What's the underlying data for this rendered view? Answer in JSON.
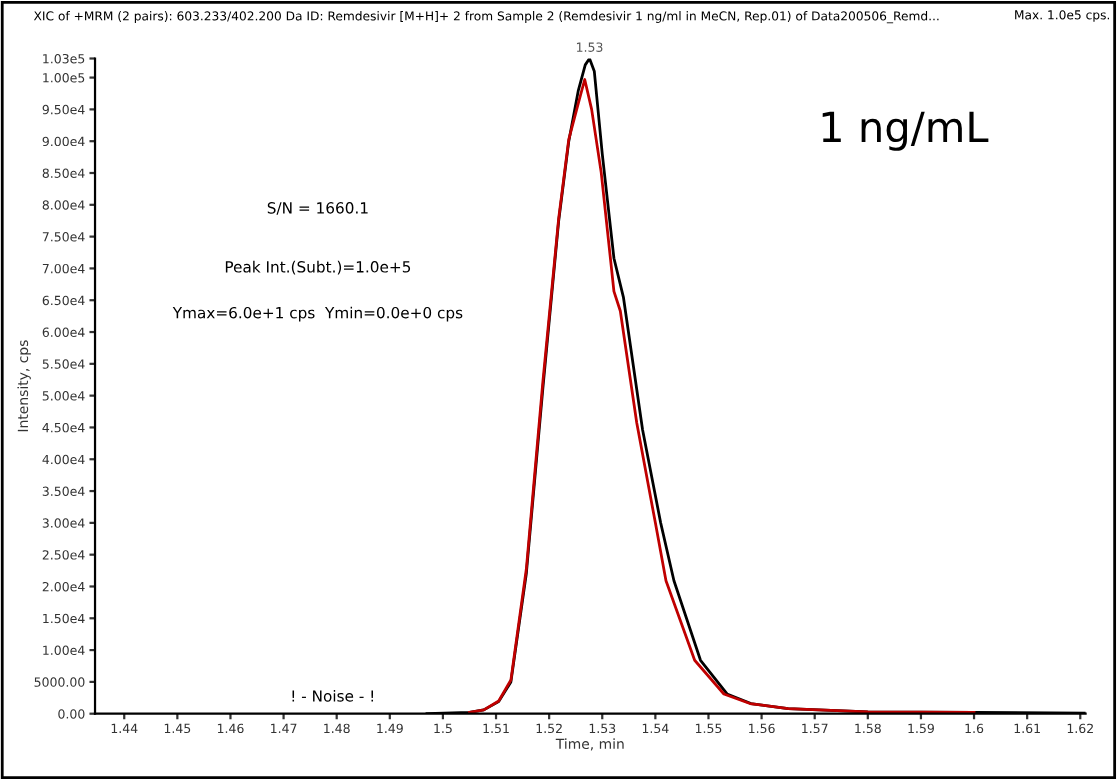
{
  "chart_data": {
    "type": "line",
    "title": "XIC of +MRM (2 pairs): 603.233/402.200 Da ID: Remdesivir [M+H]+ 2 from Sample 2 (Remdesivir 1 ng/ml in MeCN, Rep.01) of Data200506_Remd...",
    "xlabel": "Time, min",
    "ylabel": "Intensity, cps",
    "series": [
      {
        "color": "#000000",
        "x": [
          1.497,
          1.505,
          1.5077,
          1.5105,
          1.5128,
          1.5157,
          1.5188,
          1.5218,
          1.5237,
          1.5255,
          1.5268,
          1.5276,
          1.5285,
          1.53,
          1.5322,
          1.534,
          1.5376,
          1.541,
          1.5435,
          1.5485,
          1.5535,
          1.558,
          1.565,
          1.58,
          1.6,
          1.621
        ],
        "values": [
          0,
          200,
          600,
          1900,
          5000,
          22000,
          51000,
          77500,
          90000,
          98000,
          102000,
          103000,
          101000,
          88000,
          71600,
          65400,
          44600,
          30000,
          20900,
          8400,
          3100,
          1600,
          800,
          300,
          200,
          100
        ]
      },
      {
        "color": "#c00000",
        "x": [
          1.505,
          1.5077,
          1.5105,
          1.5128,
          1.5157,
          1.5188,
          1.5218,
          1.5237,
          1.5255,
          1.5267,
          1.528,
          1.5298,
          1.5322,
          1.5334,
          1.5365,
          1.54,
          1.542,
          1.5474,
          1.5529,
          1.5578,
          1.565,
          1.58,
          1.6
        ],
        "values": [
          200,
          600,
          2000,
          5300,
          22700,
          52000,
          77900,
          90300,
          96000,
          99700,
          95000,
          85100,
          66400,
          63300,
          45700,
          30000,
          20900,
          8400,
          3100,
          1600,
          800,
          300,
          200
        ]
      }
    ],
    "xlim": [
      1.4345,
      1.621
    ],
    "xticks": [
      1.44,
      1.45,
      1.46,
      1.47,
      1.48,
      1.49,
      1.5,
      1.51,
      1.52,
      1.53,
      1.54,
      1.55,
      1.56,
      1.57,
      1.58,
      1.59,
      1.6,
      1.61,
      1.62
    ],
    "ylim": [
      0,
      103000
    ],
    "yticks": [
      {
        "value": 0,
        "label": "0.00"
      },
      {
        "value": 5000,
        "label": "5000.00"
      },
      {
        "value": 10000,
        "label": "1.00e4"
      },
      {
        "value": 15000,
        "label": "1.50e4"
      },
      {
        "value": 20000,
        "label": "2.00e4"
      },
      {
        "value": 25000,
        "label": "2.50e4"
      },
      {
        "value": 30000,
        "label": "3.00e4"
      },
      {
        "value": 35000,
        "label": "3.50e4"
      },
      {
        "value": 40000,
        "label": "4.00e4"
      },
      {
        "value": 45000,
        "label": "4.50e4"
      },
      {
        "value": 50000,
        "label": "5.00e4"
      },
      {
        "value": 55000,
        "label": "5.50e4"
      },
      {
        "value": 60000,
        "label": "6.00e4"
      },
      {
        "value": 65000,
        "label": "6.50e4"
      },
      {
        "value": 70000,
        "label": "7.00e4"
      },
      {
        "value": 75000,
        "label": "7.50e4"
      },
      {
        "value": 80000,
        "label": "8.00e4"
      },
      {
        "value": 85000,
        "label": "8.50e4"
      },
      {
        "value": 90000,
        "label": "9.00e4"
      },
      {
        "value": 95000,
        "label": "9.50e4"
      },
      {
        "value": 100000,
        "label": "1.00e5"
      },
      {
        "value": 103000,
        "label": "1.03e5"
      }
    ],
    "annotations": [
      "Max. 1.0e5 cps.",
      "1 ng/mL",
      "S/N = 1660.1",
      "Peak Int.(Subt.)=1.0e+5",
      "Ymax=6.0e+1 cps  Ymin=0.0e+0 cps",
      "! - Noise - !",
      {
        "text": "1.53",
        "x": 1.5276,
        "y": 103000
      }
    ],
    "grid": false,
    "legend": false,
    "marker": "none",
    "line_style": "solid"
  }
}
